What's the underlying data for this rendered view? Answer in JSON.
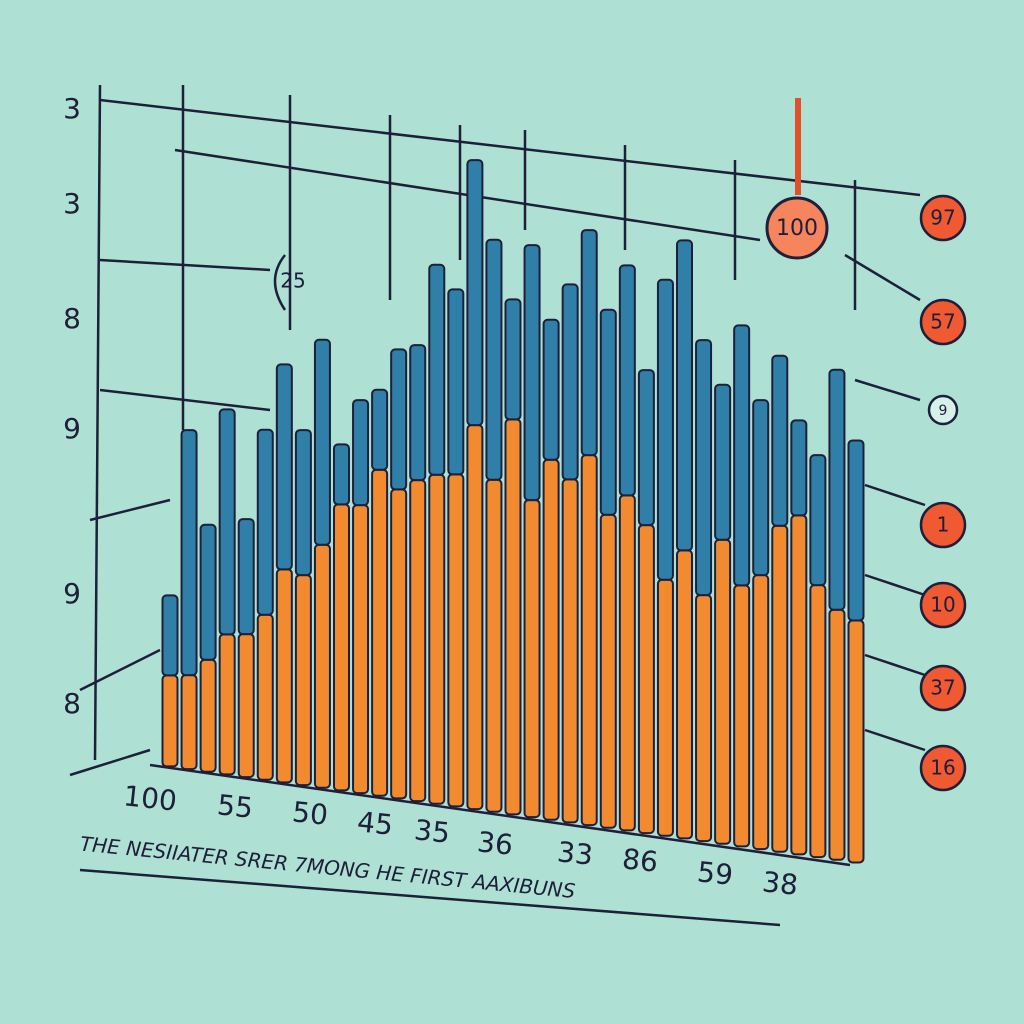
{
  "chart_data": {
    "type": "bar",
    "stacked": true,
    "categories": [
      null,
      null,
      null,
      null,
      null,
      null,
      null,
      null,
      null,
      null,
      null,
      null,
      null,
      null,
      null,
      null,
      null,
      null,
      null,
      null,
      null,
      null,
      null,
      null,
      null,
      null,
      null,
      null,
      null,
      null,
      null,
      null,
      null,
      null,
      null,
      null,
      null
    ],
    "series": [
      {
        "color": "#f28a30",
        "values": [
          91,
          94,
          112,
          140,
          143,
          165,
          213,
          210,
          243,
          286,
          288,
          326,
          309,
          321,
          329,
          332,
          384,
          332,
          395,
          317,
          360,
          343,
          370,
          313,
          335,
          308,
          256,
          288,
          246,
          304,
          261,
          274,
          326,
          339,
          272,
          250,
          242
        ]
      },
      {
        "color": "#2f7fa8",
        "values": [
          80,
          245,
          135,
          225,
          115,
          185,
          205,
          145,
          205,
          60,
          105,
          80,
          140,
          135,
          210,
          185,
          265,
          240,
          120,
          255,
          140,
          195,
          225,
          205,
          230,
          155,
          300,
          310,
          255,
          155,
          260,
          175,
          170,
          95,
          130,
          240,
          180
        ]
      }
    ],
    "ylim": [
      0,
      700
    ],
    "left_labels": [
      "3",
      "3",
      "8",
      "9",
      "9",
      "8"
    ],
    "right_labels": [
      "97",
      "57",
      "9",
      "1",
      "10",
      "37",
      "16"
    ],
    "callouts": [
      "100",
      "25"
    ],
    "x_labels": [
      "100",
      "55",
      "50",
      "45",
      "35",
      "36",
      "33",
      "86",
      "59",
      "38"
    ],
    "caption": "THE NESIIATER SRER 7MONG HE FIRST AAXIBUNS"
  }
}
